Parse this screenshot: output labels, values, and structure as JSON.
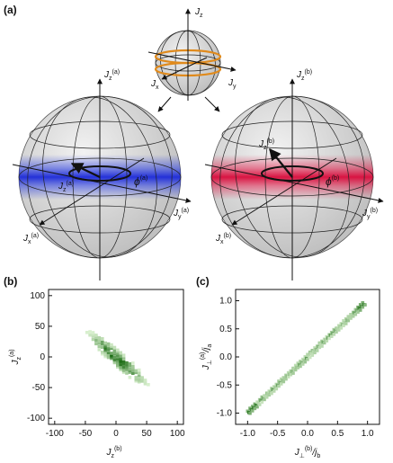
{
  "panels": {
    "a": "(a)",
    "b": "(b)",
    "c": "(c)"
  },
  "small_sphere": {
    "z_label": "J",
    "z_sub": "z",
    "x_label": "J",
    "x_sub": "x",
    "y_label": "J",
    "y_sub": "y"
  },
  "sphere_a": {
    "z_label": "J",
    "z_sub": "z",
    "z_sup": "(a)",
    "x_label": "J",
    "x_sub": "x",
    "x_sup": "(a)",
    "y_label": "J",
    "y_sub": "y",
    "y_sup": "(a)",
    "vec_label": "J",
    "vec_sub": "z",
    "vec_sup": "(a)",
    "angle_label": "ϕ",
    "angle_sup": "(a)",
    "color": "#1f2bdc"
  },
  "sphere_b": {
    "z_label": "J",
    "z_sub": "z",
    "z_sup": "(b)",
    "x_label": "J",
    "x_sub": "x",
    "x_sup": "(b)",
    "y_label": "J",
    "y_sub": "y",
    "y_sup": "(b)",
    "vec_label": "J",
    "vec_sub": "z",
    "vec_sup": "(b)",
    "angle_label": "ϕ",
    "angle_sup": "(b)",
    "color": "#e01040"
  },
  "plot_b": {
    "xticks": [
      "-100",
      "-50",
      "0",
      "50",
      "100"
    ],
    "yticks": [
      "100",
      "50",
      "0",
      "-50",
      "-100"
    ],
    "xlabel": "J",
    "xlabel_sub": "z",
    "xlabel_sup": "(b)",
    "ylabel": "J",
    "ylabel_sub": "z",
    "ylabel_sup": "(a)",
    "range": [
      -110,
      110
    ]
  },
  "plot_c": {
    "xticks": [
      "-1.0",
      "-0.5",
      "0.0",
      "0.5",
      "1.0"
    ],
    "yticks": [
      "1.0",
      "0.5",
      "0.0",
      "-0.5",
      "-1.0"
    ],
    "xlabel": "J",
    "xlabel_sub": "⊥",
    "xlabel_sup": "(b)",
    "xlabel_tail": "/j",
    "xlabel_tail_sub": "b",
    "ylabel": "J",
    "ylabel_sub": "⊥",
    "ylabel_sup": "(a)",
    "ylabel_tail": "/j",
    "ylabel_tail_sub": "a",
    "range": [
      -1.2,
      1.2
    ]
  },
  "colors": {
    "heat_dark": "#1a6b12",
    "heat_light": "#d8efce",
    "ring": "#e08a1c",
    "sphere_fill": "#d9d9d9"
  }
}
